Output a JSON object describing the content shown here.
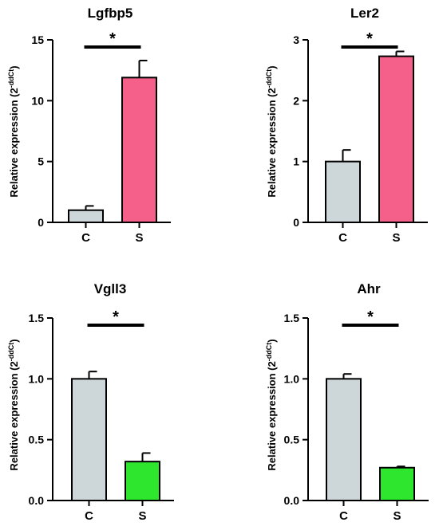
{
  "chart_data": [
    {
      "type": "bar",
      "title": "Lgfbp5",
      "ylabel_main": "Relative expression (2",
      "ylabel_sup": "-ddCt",
      "ylabel_end": ")",
      "categories": [
        "C",
        "S"
      ],
      "values": [
        1.0,
        11.9
      ],
      "errors": [
        0.35,
        1.4
      ],
      "colors": [
        "#cdd6d9",
        "#f5608a"
      ],
      "ylim": [
        0,
        15
      ],
      "yticks": [
        0,
        5,
        10,
        15
      ],
      "ytick_labels": [
        "0",
        "5",
        "10",
        "15"
      ],
      "significance": "*"
    },
    {
      "type": "bar",
      "title": "Ler2",
      "ylabel_main": "Relative expression (2",
      "ylabel_sup": "-ddCt",
      "ylabel_end": ")",
      "categories": [
        "C",
        "S"
      ],
      "values": [
        1.0,
        2.73
      ],
      "errors": [
        0.19,
        0.08
      ],
      "colors": [
        "#cdd6d9",
        "#f5608a"
      ],
      "ylim": [
        0,
        3
      ],
      "yticks": [
        0,
        1,
        2,
        3
      ],
      "ytick_labels": [
        "0",
        "1",
        "2",
        "3"
      ],
      "significance": "*"
    },
    {
      "type": "bar",
      "title": "Vgll3",
      "ylabel_main": "Relative expression (2",
      "ylabel_sup": "-ddCt",
      "ylabel_end": ")",
      "categories": [
        "C",
        "S"
      ],
      "values": [
        1.0,
        0.32
      ],
      "errors": [
        0.06,
        0.07
      ],
      "colors": [
        "#cdd6d9",
        "#2ee62e"
      ],
      "ylim": [
        0,
        1.5
      ],
      "yticks": [
        0,
        0.5,
        1.0,
        1.5
      ],
      "ytick_labels": [
        "0.0",
        "0.5",
        "1.0",
        "1.5"
      ],
      "significance": "*"
    },
    {
      "type": "bar",
      "title": "Ahr",
      "ylabel_main": "Relative expression (2",
      "ylabel_sup": "-ddCt",
      "ylabel_end": ")",
      "categories": [
        "C",
        "S"
      ],
      "values": [
        1.0,
        0.27
      ],
      "errors": [
        0.04,
        0.01
      ],
      "colors": [
        "#cdd6d9",
        "#2ee62e"
      ],
      "ylim": [
        0,
        1.5
      ],
      "yticks": [
        0,
        0.5,
        1.0,
        1.5
      ],
      "ytick_labels": [
        "0.0",
        "0.5",
        "1.0",
        "1.5"
      ],
      "significance": "*"
    }
  ]
}
